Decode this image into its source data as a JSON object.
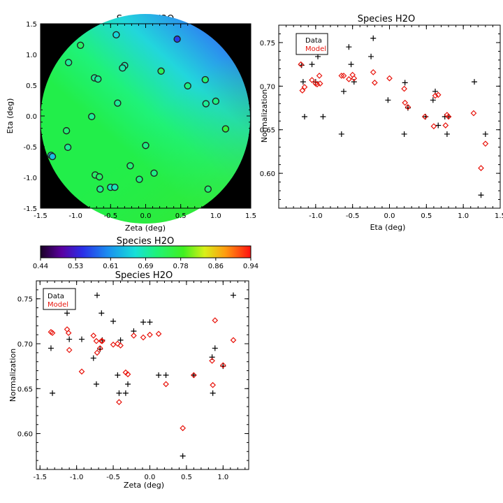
{
  "chart_data": [
    {
      "type": "heatmap",
      "title": "Species H2O",
      "xlabel": "Zeta (deg)",
      "ylabel": "Eta (deg)",
      "xlim": [
        -1.5,
        1.5
      ],
      "ylim": [
        -1.5,
        1.5
      ],
      "xticks": [
        "-1.5",
        "-1.0",
        "-0.5",
        "0.0",
        "0.5",
        "1.0",
        "1.5"
      ],
      "yticks": [
        "-1.5",
        "-1.0",
        "-0.5",
        "0.0",
        "0.5",
        "1.0",
        "1.5"
      ],
      "background_color": "#000000",
      "map_description_gradient": {
        "top_right_value": 0.61,
        "middle_value": 0.71,
        "bottom_value": 0.76
      },
      "points": [
        {
          "x": 0.45,
          "y": 1.25,
          "value": 0.55
        },
        {
          "x": -0.42,
          "y": 1.32,
          "value": 0.66
        },
        {
          "x": -0.93,
          "y": 1.15,
          "value": 0.73
        },
        {
          "x": -1.1,
          "y": 0.87,
          "value": 0.7
        },
        {
          "x": -0.3,
          "y": 0.82,
          "value": 0.69
        },
        {
          "x": -0.33,
          "y": 0.78,
          "value": 0.69
        },
        {
          "x": 0.22,
          "y": 0.73,
          "value": 0.74
        },
        {
          "x": -0.73,
          "y": 0.62,
          "value": 0.7
        },
        {
          "x": -0.68,
          "y": 0.6,
          "value": 0.7
        },
        {
          "x": 0.6,
          "y": 0.49,
          "value": 0.71
        },
        {
          "x": 0.85,
          "y": 0.59,
          "value": 0.72
        },
        {
          "x": -0.4,
          "y": 0.21,
          "value": 0.7
        },
        {
          "x": 0.86,
          "y": 0.2,
          "value": 0.7
        },
        {
          "x": 1.0,
          "y": 0.24,
          "value": 0.71
        },
        {
          "x": -0.77,
          "y": -0.01,
          "value": 0.7
        },
        {
          "x": -1.13,
          "y": -0.24,
          "value": 0.72
        },
        {
          "x": 1.14,
          "y": -0.21,
          "value": 0.76
        },
        {
          "x": -1.11,
          "y": -0.51,
          "value": 0.7
        },
        {
          "x": 0.0,
          "y": -0.48,
          "value": 0.71
        },
        {
          "x": -1.35,
          "y": -0.64,
          "value": 0.64
        },
        {
          "x": -1.33,
          "y": -0.66,
          "value": 0.64
        },
        {
          "x": -0.22,
          "y": -0.81,
          "value": 0.72
        },
        {
          "x": 0.12,
          "y": -0.93,
          "value": 0.71
        },
        {
          "x": -0.72,
          "y": -0.96,
          "value": 0.73
        },
        {
          "x": -0.66,
          "y": -0.99,
          "value": 0.73
        },
        {
          "x": -0.09,
          "y": -1.03,
          "value": 0.71
        },
        {
          "x": -0.65,
          "y": -1.19,
          "value": 0.7
        },
        {
          "x": -0.5,
          "y": -1.16,
          "value": 0.68
        },
        {
          "x": -0.44,
          "y": -1.16,
          "value": 0.68
        },
        {
          "x": 0.89,
          "y": -1.19,
          "value": 0.72
        }
      ]
    },
    {
      "type": "colorbar",
      "title": "Species H2O",
      "range": [
        0.44,
        0.94
      ],
      "tick_labels": [
        "0.44",
        "0.53",
        "0.61",
        "0.69",
        "0.78",
        "0.86",
        "0.94"
      ]
    },
    {
      "type": "scatter",
      "title": "Species H2O",
      "xlabel": "Eta (deg)",
      "ylabel": "Normalization",
      "xlim": [
        -1.5,
        1.5
      ],
      "ylim": [
        0.56,
        0.77
      ],
      "xticks": [
        "-1.0",
        "-0.5",
        "0.0",
        "0.5",
        "1.0",
        "1.5"
      ],
      "yticks": [
        "0.60",
        "0.65",
        "0.70",
        "0.75"
      ],
      "legend": {
        "position": "top-left",
        "entries": [
          {
            "name": "Data",
            "color": "#000000"
          },
          {
            "name": "Model",
            "color": "#e8140c"
          }
        ]
      },
      "series": [
        {
          "name": "Data",
          "marker": "plus",
          "color": "#000000",
          "x": [
            -1.19,
            -1.17,
            -1.15,
            -1.05,
            -1.0,
            -0.97,
            -0.93,
            -0.9,
            -0.65,
            -0.62,
            -0.55,
            -0.52,
            -0.48,
            -0.25,
            -0.22,
            -0.02,
            0.2,
            0.21,
            0.25,
            0.49,
            0.59,
            0.62,
            0.66,
            0.75,
            0.78,
            0.8,
            1.15,
            1.24,
            1.3
          ],
          "y": [
            0.724,
            0.705,
            0.665,
            0.725,
            0.705,
            0.734,
            0.745,
            0.665,
            0.645,
            0.694,
            0.745,
            0.725,
            0.705,
            0.734,
            0.755,
            0.684,
            0.645,
            0.704,
            0.675,
            0.665,
            0.684,
            0.694,
            0.655,
            0.665,
            0.645,
            0.665,
            0.705,
            0.575,
            0.645
          ]
        },
        {
          "name": "Model",
          "marker": "diamond",
          "color": "#e8140c",
          "x": [
            -1.2,
            -1.18,
            -1.15,
            -1.05,
            -1.0,
            -0.98,
            -0.95,
            -0.94,
            -0.65,
            -0.62,
            -0.55,
            -0.5,
            -0.48,
            -0.22,
            -0.2,
            0.0,
            0.2,
            0.21,
            0.25,
            0.48,
            0.6,
            0.62,
            0.66,
            0.76,
            0.78,
            0.8,
            1.14,
            1.24,
            1.3
          ],
          "y": [
            0.725,
            0.695,
            0.699,
            0.707,
            0.703,
            0.702,
            0.712,
            0.703,
            0.712,
            0.712,
            0.708,
            0.713,
            0.709,
            0.716,
            0.704,
            0.709,
            0.697,
            0.681,
            0.676,
            0.665,
            0.654,
            0.689,
            0.69,
            0.655,
            0.667,
            0.665,
            0.669,
            0.606,
            0.634
          ]
        }
      ]
    },
    {
      "type": "scatter",
      "title": "Species H2O",
      "xlabel": "Zeta (deg)",
      "ylabel": "Normalization",
      "xlim": [
        -1.55,
        1.35
      ],
      "ylim": [
        0.56,
        0.77
      ],
      "xticks": [
        "-1.5",
        "-1.0",
        "-0.5",
        "0.0",
        "0.5",
        "1.0"
      ],
      "yticks": [
        "0.60",
        "0.65",
        "0.70",
        "0.75"
      ],
      "legend": {
        "position": "top-left",
        "entries": [
          {
            "name": "Data",
            "color": "#000000"
          },
          {
            "name": "Model",
            "color": "#e8140c"
          }
        ]
      },
      "series": [
        {
          "name": "Data",
          "marker": "plus",
          "color": "#000000",
          "x": [
            -1.35,
            -1.33,
            -1.13,
            -1.11,
            -1.1,
            -0.93,
            -0.77,
            -0.73,
            -0.72,
            -0.68,
            -0.66,
            -0.65,
            -0.5,
            -0.44,
            -0.42,
            -0.4,
            -0.33,
            -0.3,
            -0.22,
            -0.09,
            0.0,
            0.12,
            0.22,
            0.45,
            0.6,
            0.85,
            0.86,
            0.89,
            1.0,
            1.14
          ],
          "y": [
            0.695,
            0.645,
            0.734,
            0.745,
            0.705,
            0.705,
            0.684,
            0.655,
            0.754,
            0.694,
            0.734,
            0.704,
            0.725,
            0.665,
            0.645,
            0.704,
            0.645,
            0.655,
            0.714,
            0.724,
            0.724,
            0.665,
            0.665,
            0.575,
            0.665,
            0.685,
            0.645,
            0.695,
            0.675,
            0.754
          ]
        },
        {
          "name": "Model",
          "marker": "diamond",
          "color": "#e8140c",
          "x": [
            -1.35,
            -1.33,
            -1.13,
            -1.11,
            -1.1,
            -0.93,
            -0.77,
            -0.73,
            -0.72,
            -0.68,
            -0.66,
            -0.65,
            -0.5,
            -0.44,
            -0.42,
            -0.4,
            -0.33,
            -0.3,
            -0.22,
            -0.09,
            0.0,
            0.12,
            0.22,
            0.45,
            0.6,
            0.85,
            0.86,
            0.89,
            1.0,
            1.14
          ],
          "y": [
            0.713,
            0.712,
            0.716,
            0.712,
            0.693,
            0.669,
            0.709,
            0.703,
            0.69,
            0.695,
            0.703,
            0.703,
            0.699,
            0.7,
            0.635,
            0.698,
            0.668,
            0.666,
            0.709,
            0.707,
            0.71,
            0.711,
            0.655,
            0.606,
            0.665,
            0.681,
            0.654,
            0.726,
            0.676,
            0.704
          ]
        }
      ]
    }
  ]
}
